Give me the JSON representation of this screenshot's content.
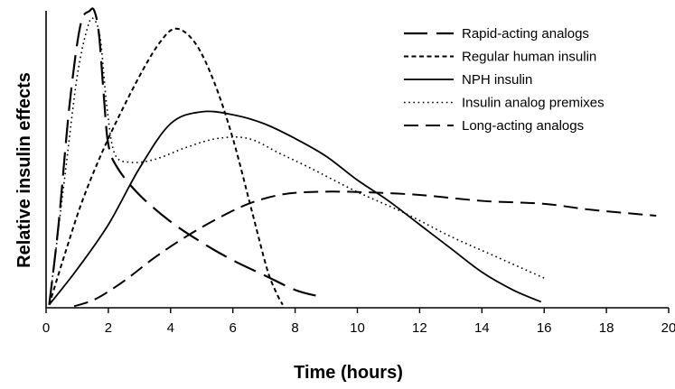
{
  "chart_data": {
    "type": "line",
    "xlabel": "Time (hours)",
    "ylabel": "Relative insulin effects",
    "xlim": [
      0,
      20
    ],
    "ylim": [
      0,
      1
    ],
    "x_ticks": [
      0,
      2,
      4,
      6,
      8,
      10,
      12,
      14,
      16,
      18,
      20
    ],
    "y_ticks_shown": false,
    "grid": false,
    "legend_position": "top-right",
    "series": [
      {
        "name": "Rapid-acting analogs",
        "style": "long-dash",
        "color": "#000000",
        "points": [
          [
            0.1,
            0.01
          ],
          [
            0.4,
            0.28
          ],
          [
            0.75,
            0.68
          ],
          [
            1.1,
            0.95
          ],
          [
            1.4,
            1.0
          ],
          [
            1.55,
            1.0
          ],
          [
            1.7,
            0.92
          ],
          [
            1.85,
            0.72
          ],
          [
            2.0,
            0.55
          ],
          [
            2.3,
            0.47
          ],
          [
            3.0,
            0.38
          ],
          [
            4.0,
            0.29
          ],
          [
            5.0,
            0.22
          ],
          [
            6.0,
            0.16
          ],
          [
            7.0,
            0.11
          ],
          [
            8.0,
            0.06
          ],
          [
            8.7,
            0.04
          ]
        ]
      },
      {
        "name": "Regular human insulin",
        "style": "short-dash",
        "color": "#000000",
        "points": [
          [
            0.1,
            0.01
          ],
          [
            0.6,
            0.18
          ],
          [
            1.2,
            0.37
          ],
          [
            2.0,
            0.57
          ],
          [
            3.0,
            0.78
          ],
          [
            3.7,
            0.9
          ],
          [
            4.2,
            0.94
          ],
          [
            4.8,
            0.89
          ],
          [
            5.4,
            0.76
          ],
          [
            6.0,
            0.57
          ],
          [
            6.6,
            0.33
          ],
          [
            7.1,
            0.13
          ],
          [
            7.4,
            0.05
          ],
          [
            7.6,
            0.01
          ]
        ]
      },
      {
        "name": "NPH insulin",
        "style": "solid",
        "color": "#000000",
        "points": [
          [
            0.1,
            0.01
          ],
          [
            1.0,
            0.13
          ],
          [
            2.0,
            0.28
          ],
          [
            3.0,
            0.47
          ],
          [
            4.0,
            0.62
          ],
          [
            5.0,
            0.66
          ],
          [
            6.0,
            0.65
          ],
          [
            7.0,
            0.62
          ],
          [
            8.0,
            0.57
          ],
          [
            9.0,
            0.51
          ],
          [
            10.0,
            0.43
          ],
          [
            11.0,
            0.36
          ],
          [
            12.0,
            0.28
          ],
          [
            13.0,
            0.2
          ],
          [
            14.0,
            0.12
          ],
          [
            15.0,
            0.06
          ],
          [
            15.9,
            0.02
          ]
        ]
      },
      {
        "name": "Insulin analog premixes",
        "style": "dotted",
        "color": "#000000",
        "points": [
          [
            0.1,
            0.01
          ],
          [
            0.6,
            0.44
          ],
          [
            1.0,
            0.78
          ],
          [
            1.35,
            0.95
          ],
          [
            1.55,
            0.97
          ],
          [
            1.75,
            0.9
          ],
          [
            1.95,
            0.68
          ],
          [
            2.2,
            0.52
          ],
          [
            2.7,
            0.49
          ],
          [
            3.5,
            0.5
          ],
          [
            4.5,
            0.54
          ],
          [
            5.5,
            0.57
          ],
          [
            6.5,
            0.57
          ],
          [
            7.5,
            0.52
          ],
          [
            8.5,
            0.47
          ],
          [
            10.0,
            0.39
          ],
          [
            11.5,
            0.32
          ],
          [
            13.0,
            0.24
          ],
          [
            14.5,
            0.17
          ],
          [
            16.0,
            0.1
          ]
        ]
      },
      {
        "name": "Long-acting analogs",
        "style": "dash",
        "color": "#000000",
        "points": [
          [
            0.9,
            0.005
          ],
          [
            1.6,
            0.03
          ],
          [
            2.5,
            0.09
          ],
          [
            3.5,
            0.17
          ],
          [
            4.5,
            0.24
          ],
          [
            5.5,
            0.3
          ],
          [
            6.5,
            0.35
          ],
          [
            7.5,
            0.38
          ],
          [
            8.5,
            0.39
          ],
          [
            10.0,
            0.39
          ],
          [
            12.0,
            0.38
          ],
          [
            14.0,
            0.36
          ],
          [
            16.0,
            0.35
          ],
          [
            17.5,
            0.33
          ],
          [
            19.6,
            0.31
          ]
        ]
      }
    ]
  }
}
